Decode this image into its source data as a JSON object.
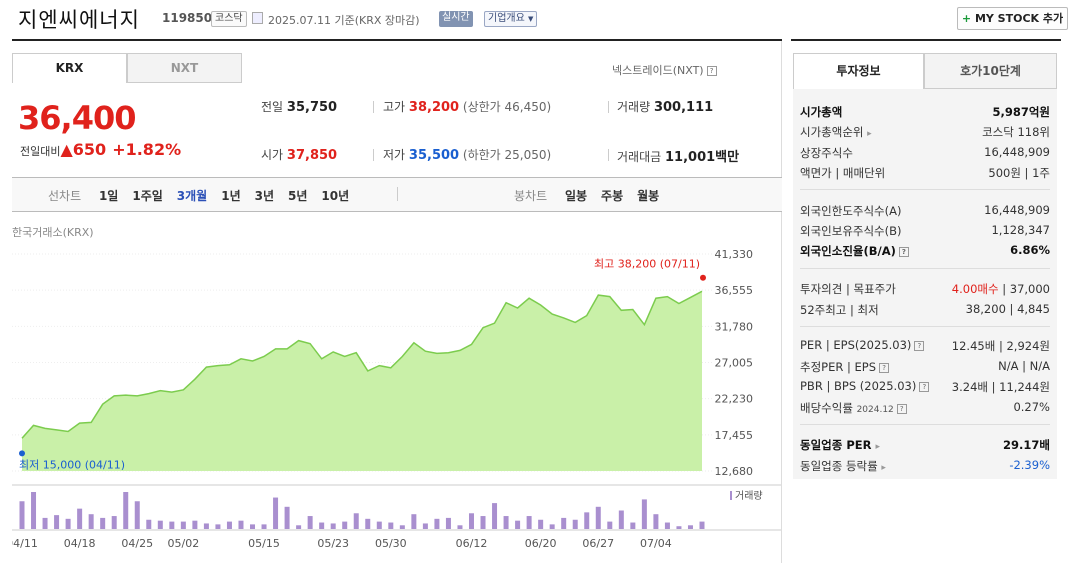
{
  "header": {
    "title": "지엔씨에너지",
    "code": "119850",
    "market": "코스닥",
    "basis": "2025.07.11  기준(KRX 장마감)",
    "realtime": "실시간",
    "overview": "기업개요",
    "mystock_plus": "+",
    "mystock": "MY STOCK 추가"
  },
  "tabs": {
    "krx": "KRX",
    "nxt": "NXT",
    "nextrade": "넥스트레이드(NXT)"
  },
  "quote": {
    "price": "36,400",
    "diff_label": "전일대비",
    "diff_amount": "▲650",
    "diff_pct": "+1.82%",
    "prev_label": "전일",
    "prev": "35,750",
    "high_label": "고가",
    "high": "38,200",
    "upper": "(상한가 46,450)",
    "volume_label": "거래량",
    "volume": "300,111",
    "open_label": "시가",
    "open": "37,850",
    "low_label": "저가",
    "low": "35,500",
    "lower": "(하한가 25,050)",
    "amount_label": "거래대금",
    "amount": "11,001",
    "amount_unit": "백만"
  },
  "period": {
    "line_label": "선차트",
    "line_items": [
      "1일",
      "1주일",
      "3개월",
      "1년",
      "3년",
      "5년",
      "10년"
    ],
    "selected": "3개월",
    "candle_label": "봉차트",
    "candle_items": [
      "일봉",
      "주봉",
      "월봉"
    ]
  },
  "chart_exchange": "한국거래소(KRX)",
  "colors": {
    "up": "#e0221c",
    "down": "#1a5fd0",
    "area": "#c9f0a8",
    "line": "#7ccc4e",
    "volume": "#a98fcf"
  },
  "chart_data": {
    "type": "area",
    "ylim": [
      12680,
      41330
    ],
    "yticks": [
      "41,330",
      "36,555",
      "31,780",
      "27,005",
      "22,230",
      "17,455",
      "12,680"
    ],
    "xticks": [
      "04/11",
      "04/18",
      "04/25",
      "05/02",
      "05/15",
      "05/23",
      "05/30",
      "06/12",
      "06/20",
      "06/27",
      "07/04"
    ],
    "xtick_index": [
      0,
      5,
      10,
      14,
      21,
      27,
      32,
      39,
      45,
      50,
      55
    ],
    "prices": [
      17000,
      18700,
      18300,
      18100,
      17900,
      19000,
      19100,
      21500,
      22600,
      22700,
      22600,
      22900,
      23300,
      23100,
      23400,
      24800,
      26400,
      26600,
      26700,
      27500,
      27200,
      27800,
      28800,
      28800,
      29900,
      29500,
      27500,
      28400,
      27800,
      28300,
      25900,
      26600,
      26300,
      27800,
      29600,
      28500,
      28200,
      28300,
      28600,
      29400,
      31600,
      32200,
      34900,
      34200,
      35500,
      34600,
      33400,
      32900,
      32300,
      33200,
      35900,
      35700,
      33900,
      34000,
      32000,
      35500,
      35700,
      34800,
      35600,
      36400
    ],
    "volumes": [
      30,
      40,
      12,
      15,
      11,
      22,
      16,
      12,
      14,
      40,
      30,
      10,
      9,
      8,
      8,
      9,
      6,
      5,
      8,
      9,
      5,
      5,
      34,
      24,
      4,
      14,
      7,
      6,
      8,
      17,
      11,
      8,
      7,
      4,
      16,
      6,
      11,
      12,
      4,
      17,
      14,
      28,
      14,
      9,
      14,
      10,
      5,
      12,
      10,
      18,
      24,
      8,
      20,
      7,
      32,
      16,
      7,
      3,
      4,
      8
    ],
    "high_label": "최고 38,200 (07/11)",
    "low_label": "최저 15,000 (04/11)",
    "volume_legend": "거래량"
  },
  "invest": {
    "tab1": "투자정보",
    "tab2": "호가10단계",
    "market_cap_k": "시가총액",
    "market_cap_v": "5,987억원",
    "rank_k": "시가총액순위",
    "rank_v": "코스닥 118위",
    "shares_k": "상장주식수",
    "shares_v": "16,448,909",
    "par_k": "액면가 | 매매단위",
    "par_v": "500원 | 1주",
    "foreign_limit_k": "외국인한도주식수(A)",
    "foreign_limit_v": "16,448,909",
    "foreign_hold_k": "외국인보유주식수(B)",
    "foreign_hold_v": "1,128,347",
    "foreign_ratio_k": "외국인소진율(B/A)",
    "foreign_ratio_v": "6.86%",
    "opinion_k": "투자의견 | 목표주가",
    "opinion_v1": "4.00매수",
    "opinion_v2": " | 37,000",
    "week52_k": "52주최고 | 최저",
    "week52_v": "38,200 | 4,845",
    "per_k": "PER | EPS(2025.03)",
    "per_v": "12.45배 | 2,924원",
    "est_k": "추정PER | EPS",
    "est_v": "N/A | N/A",
    "pbr_k": "PBR | BPS (2025.03)",
    "pbr_v": "3.24배 | 11,244원",
    "div_k": "배당수익률",
    "div_date": "2024.12",
    "div_v": "0.27%",
    "sector_per_k": "동일업종 PER",
    "sector_per_v": "29.17배",
    "sector_chg_k": "동일업종 등락률",
    "sector_chg_v": "-2.39%",
    "info_icon": "?"
  }
}
